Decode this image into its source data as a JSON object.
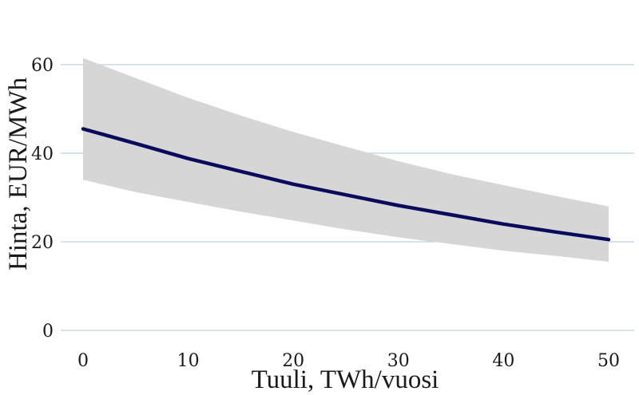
{
  "chart_data": {
    "type": "line",
    "title": "",
    "xlabel": "Tuuli, TWh/vuosi",
    "ylabel": "Hinta, EUR/MWh",
    "xlim": [
      0,
      50
    ],
    "ylim": [
      0,
      60
    ],
    "x_ticks": [
      "0",
      "10",
      "20",
      "30",
      "40",
      "50"
    ],
    "y_ticks": [
      "0",
      "20",
      "40",
      "60"
    ],
    "grid": "horizontal",
    "legend": "none",
    "colors": {
      "line": "#0b0b5e",
      "band": "#d6d6d6",
      "grid": "#a9c4d4"
    },
    "series": [
      {
        "x": [
          0,
          5,
          10,
          15,
          20,
          25,
          30,
          35,
          40,
          45,
          50
        ],
        "y": [
          45.5,
          42.2,
          38.8,
          35.9,
          33.0,
          30.6,
          28.2,
          26.1,
          24.0,
          22.2,
          20.5
        ],
        "lower": [
          34.0,
          31.2,
          29.0,
          26.8,
          24.8,
          22.8,
          21.0,
          19.5,
          18.0,
          16.8,
          15.5
        ],
        "upper": [
          61.5,
          57.0,
          52.5,
          48.5,
          44.8,
          41.5,
          38.2,
          35.3,
          32.8,
          30.3,
          28.0
        ]
      }
    ]
  }
}
